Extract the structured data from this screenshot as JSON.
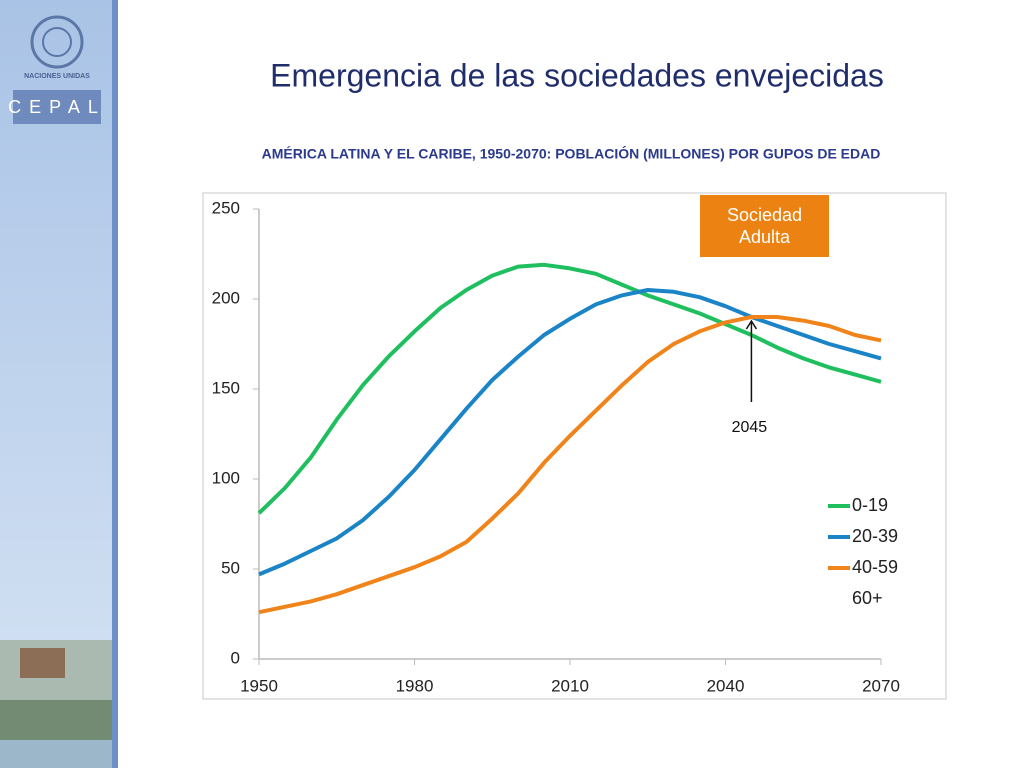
{
  "logo": {
    "org": "NACIONES UNIDAS",
    "acronym": "CEPAL"
  },
  "chart_data": {
    "type": "line",
    "title": "Emergencia de las sociedades envejecidas",
    "subtitle": "AMÉRICA LATINA Y EL CARIBE, 1950-2070: POBLACIÓN (MILLONES) POR GUPOS DE EDAD",
    "x": [
      1950,
      1955,
      1960,
      1965,
      1970,
      1975,
      1980,
      1985,
      1990,
      1995,
      2000,
      2005,
      2010,
      2015,
      2020,
      2025,
      2030,
      2035,
      2040,
      2045,
      2050,
      2055,
      2060,
      2065,
      2070
    ],
    "series": [
      {
        "name": "0-19",
        "color": "#1fbf5f",
        "values": [
          81,
          95,
          112,
          133,
          152,
          168,
          182,
          195,
          205,
          213,
          218,
          219,
          217,
          214,
          208,
          202,
          197,
          192,
          186,
          180,
          173,
          167,
          162,
          158,
          154
        ]
      },
      {
        "name": "20-39",
        "color": "#1a84c7",
        "values": [
          47,
          53,
          60,
          67,
          77,
          90,
          105,
          122,
          139,
          155,
          168,
          180,
          189,
          197,
          202,
          205,
          204,
          201,
          196,
          190,
          185,
          180,
          175,
          171,
          167
        ]
      },
      {
        "name": "40-59",
        "color": "#f0841a",
        "values": [
          26,
          29,
          32,
          36,
          41,
          46,
          51,
          57,
          65,
          78,
          92,
          109,
          124,
          138,
          152,
          165,
          175,
          182,
          187,
          190,
          190,
          188,
          185,
          180,
          177
        ]
      },
      {
        "name": "60+",
        "color": null,
        "values": [
          null,
          null,
          null,
          null,
          null,
          null,
          null,
          null,
          null,
          null,
          null,
          null,
          null,
          null,
          null,
          null,
          null,
          null,
          null,
          null,
          null,
          null,
          null,
          null,
          null
        ]
      }
    ],
    "xlim": [
      1950,
      2070
    ],
    "xticks": [
      1950,
      1980,
      2010,
      2040,
      2070
    ],
    "ylim": [
      0,
      250
    ],
    "yticks": [
      0,
      50,
      100,
      150,
      200,
      250
    ],
    "grid": false,
    "legend": "lower right",
    "annotations": [
      {
        "text": "Sociedad Adulta"
      },
      {
        "text": "2045",
        "x": 2045
      }
    ]
  }
}
